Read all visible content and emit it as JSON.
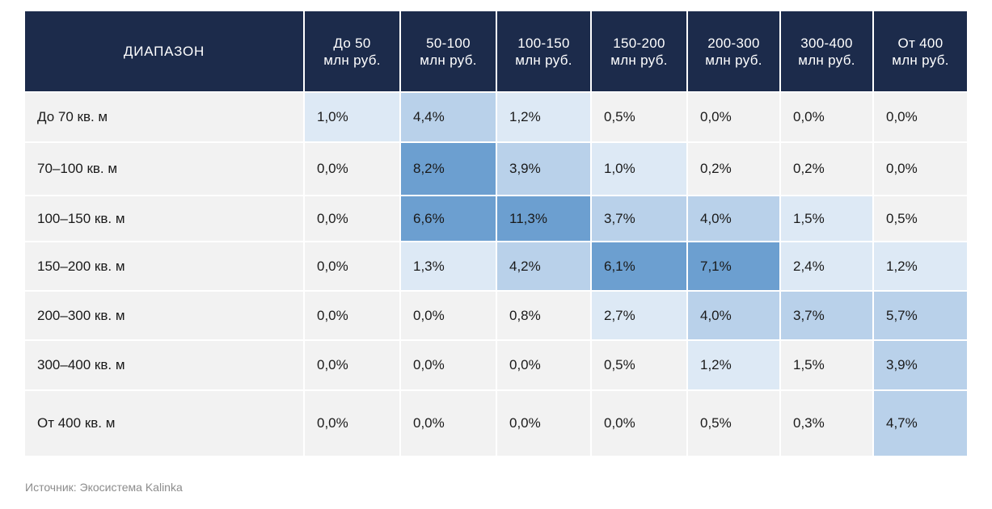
{
  "chart_data": {
    "type": "heatmap",
    "corner_label": "ДИАПАЗОН",
    "columns": [
      [
        "До 50",
        "млн руб."
      ],
      [
        "50-100",
        "млн руб."
      ],
      [
        "100-150",
        "млн руб."
      ],
      [
        "150-200",
        "млн руб."
      ],
      [
        "200-300",
        "млн руб."
      ],
      [
        "300-400",
        "млн руб."
      ],
      [
        "От 400",
        "млн руб."
      ]
    ],
    "rows": [
      "До 70 кв. м",
      "70–100 кв. м",
      "100–150 кв. м",
      "150–200 кв. м",
      "200–300 кв. м",
      "300–400 кв. м",
      "От 400 кв. м"
    ],
    "values": [
      [
        1.0,
        4.4,
        1.2,
        0.5,
        0.0,
        0.0,
        0.0
      ],
      [
        0.0,
        8.2,
        3.9,
        1.0,
        0.2,
        0.2,
        0.0
      ],
      [
        0.0,
        6.6,
        11.3,
        3.7,
        4.0,
        1.5,
        0.5
      ],
      [
        0.0,
        1.3,
        4.2,
        6.1,
        7.1,
        2.4,
        1.2
      ],
      [
        0.0,
        0.0,
        0.8,
        2.7,
        4.0,
        3.7,
        5.7
      ],
      [
        0.0,
        0.0,
        0.0,
        0.5,
        1.2,
        1.5,
        3.9
      ],
      [
        0.0,
        0.0,
        0.0,
        0.0,
        0.5,
        0.3,
        4.7
      ]
    ],
    "value_labels": [
      [
        "1,0%",
        "4,4%",
        "1,2%",
        "0,5%",
        "0,0%",
        "0,0%",
        "0,0%"
      ],
      [
        "0,0%",
        "8,2%",
        "3,9%",
        "1,0%",
        "0,2%",
        "0,2%",
        "0,0%"
      ],
      [
        "0,0%",
        "6,6%",
        "11,3%",
        "3,7%",
        "4,0%",
        "1,5%",
        "0,5%"
      ],
      [
        "0,0%",
        "1,3%",
        "4,2%",
        "6,1%",
        "7,1%",
        "2,4%",
        "1,2%"
      ],
      [
        "0,0%",
        "0,0%",
        "0,8%",
        "2,7%",
        "4,0%",
        "3,7%",
        "5,7%"
      ],
      [
        "0,0%",
        "0,0%",
        "0,0%",
        "0,5%",
        "1,2%",
        "1,5%",
        "3,9%"
      ],
      [
        "0,0%",
        "0,0%",
        "0,0%",
        "0,0%",
        "0,5%",
        "0,3%",
        "4,7%"
      ]
    ],
    "color_levels": [
      [
        1,
        2,
        1,
        0,
        0,
        0,
        0
      ],
      [
        0,
        3,
        2,
        1,
        0,
        0,
        0
      ],
      [
        0,
        3,
        3,
        2,
        2,
        1,
        0
      ],
      [
        0,
        1,
        2,
        3,
        3,
        1,
        1
      ],
      [
        0,
        0,
        0,
        1,
        2,
        2,
        2
      ],
      [
        0,
        0,
        0,
        0,
        1,
        0,
        2
      ],
      [
        0,
        0,
        0,
        0,
        0,
        0,
        2
      ]
    ],
    "level_colors": [
      "#f2f2f2",
      "#dde9f5",
      "#b9d1ea",
      "#6c9fd0"
    ],
    "header_color": "#1c2b4b"
  },
  "source_note": "Источник: Экосистема Kalinka"
}
